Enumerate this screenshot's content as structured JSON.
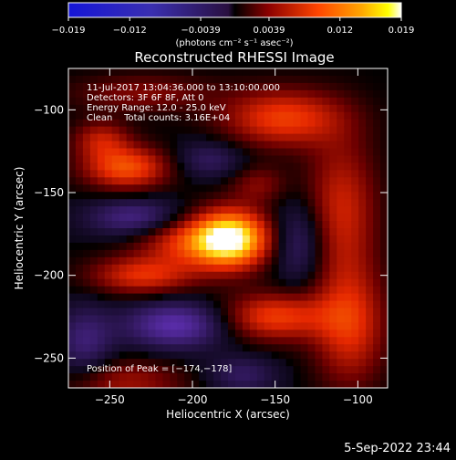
{
  "colorbar": {
    "ticks": [
      "−0.019",
      "−0.012",
      "−0.0039",
      "0.0039",
      "0.012",
      "0.019"
    ],
    "tick_values": [
      -0.019,
      -0.012,
      -0.0039,
      0.0039,
      0.012,
      0.019
    ],
    "range": [
      -0.019,
      0.019
    ],
    "unit_label": "(photons cm⁻² s⁻¹ asec⁻²)"
  },
  "chart_data": {
    "type": "heatmap",
    "title": "Reconstructed RHESSI Image",
    "xlabel": "Heliocentric X (arcsec)",
    "ylabel": "Heliocentric Y (arcsec)",
    "xlim": [
      -275,
      -82
    ],
    "ylim": [
      -268,
      -75
    ],
    "x_ticks": [
      -250,
      -200,
      -150,
      -100
    ],
    "x_tick_labels": [
      "−250",
      "−200",
      "−150",
      "−100"
    ],
    "y_ticks": [
      -250,
      -200,
      -150,
      -100
    ],
    "y_tick_labels": [
      "−250",
      "−200",
      "−150",
      "−100"
    ],
    "peak": [
      -174,
      -178
    ],
    "colormap": [
      "#000000",
      "#8b0000",
      "#ff4500",
      "#ffa500",
      "#ffff00",
      "#ffffff"
    ],
    "negative_color": "#5a2d8c",
    "blobs": [
      {
        "x": -177,
        "y": -178,
        "sx": 16,
        "sy": 12,
        "v": 0.019
      },
      {
        "x": -240,
        "y": -135,
        "sx": 18,
        "sy": 9,
        "v": 0.01
      },
      {
        "x": -255,
        "y": -118,
        "sx": 12,
        "sy": 8,
        "v": 0.006
      },
      {
        "x": -230,
        "y": -200,
        "sx": 22,
        "sy": 8,
        "v": 0.008
      },
      {
        "x": -205,
        "y": -180,
        "sx": 20,
        "sy": 10,
        "v": 0.007
      },
      {
        "x": -150,
        "y": -225,
        "sx": 22,
        "sy": 10,
        "v": 0.009
      },
      {
        "x": -145,
        "y": -105,
        "sx": 25,
        "sy": 12,
        "v": 0.009
      },
      {
        "x": -110,
        "y": -160,
        "sx": 15,
        "sy": 30,
        "v": 0.007
      },
      {
        "x": -105,
        "y": -230,
        "sx": 15,
        "sy": 25,
        "v": 0.008
      },
      {
        "x": -240,
        "y": -265,
        "sx": 25,
        "sy": 10,
        "v": 0.005
      },
      {
        "x": -230,
        "y": -90,
        "sx": 30,
        "sy": 8,
        "v": 0.004
      },
      {
        "x": -160,
        "y": -145,
        "sx": 12,
        "sy": 8,
        "v": 0.004
      },
      {
        "x": -235,
        "y": -165,
        "sx": 20,
        "sy": 8,
        "v": -0.006
      },
      {
        "x": -210,
        "y": -230,
        "sx": 22,
        "sy": 10,
        "v": -0.008
      },
      {
        "x": -265,
        "y": -240,
        "sx": 12,
        "sy": 15,
        "v": -0.005
      },
      {
        "x": -135,
        "y": -180,
        "sx": 12,
        "sy": 18,
        "v": -0.005
      },
      {
        "x": -190,
        "y": -130,
        "sx": 15,
        "sy": 8,
        "v": -0.004
      },
      {
        "x": -170,
        "y": -260,
        "sx": 15,
        "sy": 8,
        "v": -0.004
      }
    ]
  },
  "info": {
    "line1": "11-Jul-2017 13:04:36.000 to 13:10:00.000",
    "line2": "Detectors: 3F 6F 8F, Att 0",
    "line3": "Energy Range: 12.0 - 25.0 keV",
    "line4": "Clean    Total counts: 3.16E+04",
    "peak_label": "Position of Peak = [−174,−178]"
  },
  "timestamp": "5-Sep-2022 23:44"
}
